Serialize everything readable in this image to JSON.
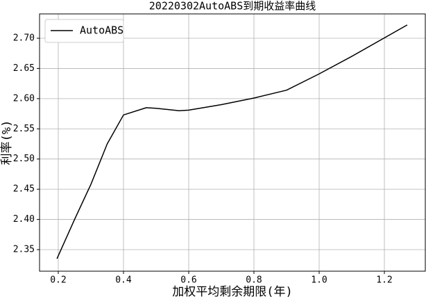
{
  "chart_data": {
    "type": "line",
    "title": "20220302AutoABS到期收益率曲线",
    "x_label": "加权平均剩余期限(年)",
    "y_label": "利率(%)",
    "x": [
      0.196,
      0.25,
      0.3,
      0.35,
      0.4,
      0.47,
      0.5,
      0.57,
      0.6,
      0.7,
      0.8,
      0.9,
      1.0,
      1.1,
      1.27
    ],
    "series": [
      {
        "name": "AutoABS",
        "color": "#000000",
        "values": [
          2.335,
          2.4,
          2.458,
          2.525,
          2.573,
          2.585,
          2.584,
          2.58,
          2.581,
          2.59,
          2.601,
          2.614,
          2.641,
          2.67,
          2.722
        ]
      }
    ],
    "xlim": [
      0.1426,
      1.3255
    ],
    "ylim": [
      2.3143,
      2.7403
    ],
    "xticks": [
      0.2,
      0.4,
      0.6,
      0.8,
      {
        "value": 1,
        "label": "1.0"
      },
      1.2
    ],
    "yticks": [
      2.35,
      {
        "value": 2.4,
        "label": "2.40"
      },
      2.45,
      {
        "value": 2.5,
        "label": "2.50"
      },
      2.55,
      {
        "value": 2.6,
        "label": "2.60"
      },
      2.65,
      {
        "value": 2.7,
        "label": "2.70"
      }
    ],
    "grid": true,
    "legend_position": "upper-left"
  }
}
